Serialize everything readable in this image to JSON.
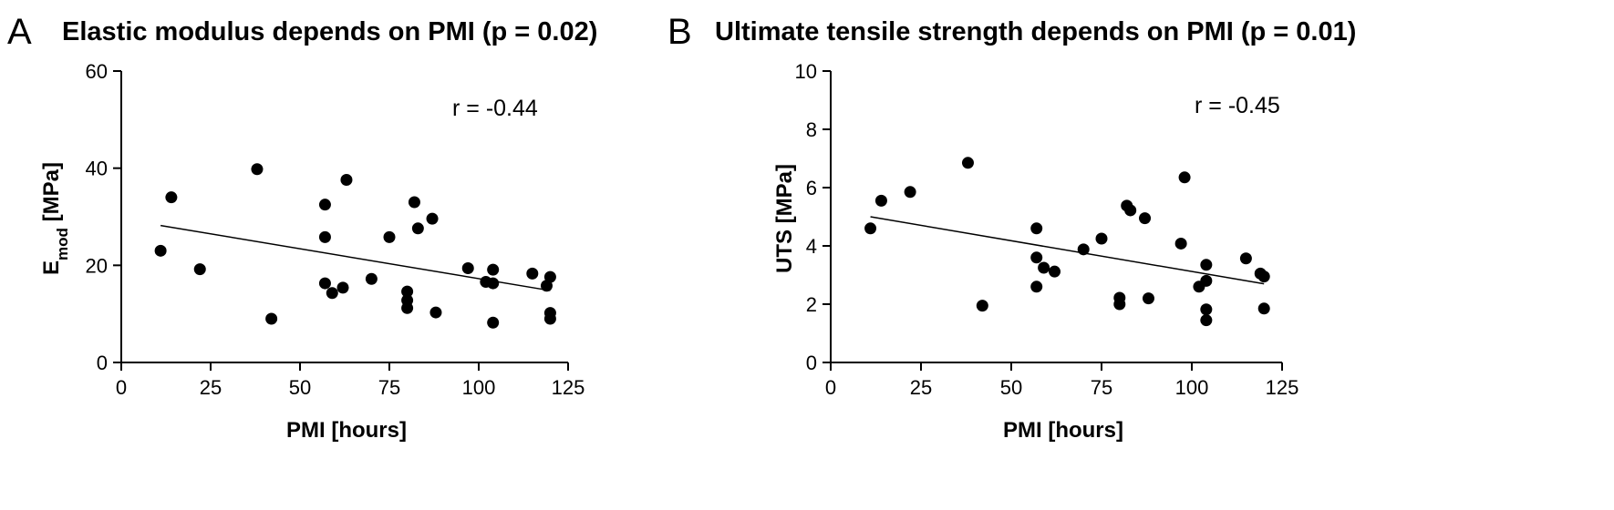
{
  "chart_data": [
    {
      "type": "scatter",
      "panel": "A",
      "title": "Elastic modulus depends on PMI (p = 0.02)",
      "xlabel": "PMI [hours]",
      "ylabel": "E",
      "ylabel_sub": "mod",
      "ylabel_unit": " [MPa]",
      "xlim": [
        0,
        125
      ],
      "ylim": [
        0,
        60
      ],
      "xticks": [
        0,
        25,
        50,
        75,
        100,
        125
      ],
      "yticks": [
        0,
        20,
        40,
        60
      ],
      "annotation": "r  = -0.44",
      "grid": false,
      "points": [
        {
          "x": 11,
          "y": 23
        },
        {
          "x": 14,
          "y": 34
        },
        {
          "x": 22,
          "y": 19.2
        },
        {
          "x": 38,
          "y": 39.8
        },
        {
          "x": 42,
          "y": 9
        },
        {
          "x": 57,
          "y": 32.5
        },
        {
          "x": 57,
          "y": 25.8
        },
        {
          "x": 57,
          "y": 16.3
        },
        {
          "x": 59,
          "y": 14.3
        },
        {
          "x": 62,
          "y": 15.4
        },
        {
          "x": 63,
          "y": 37.6
        },
        {
          "x": 70,
          "y": 17.2
        },
        {
          "x": 75,
          "y": 25.8
        },
        {
          "x": 80,
          "y": 14.6
        },
        {
          "x": 80,
          "y": 12.8
        },
        {
          "x": 80,
          "y": 11.2
        },
        {
          "x": 82,
          "y": 33
        },
        {
          "x": 83,
          "y": 27.6
        },
        {
          "x": 87,
          "y": 29.6
        },
        {
          "x": 88,
          "y": 10.3
        },
        {
          "x": 97,
          "y": 19.4
        },
        {
          "x": 102,
          "y": 16.6
        },
        {
          "x": 104,
          "y": 19.1
        },
        {
          "x": 104,
          "y": 16.3
        },
        {
          "x": 104,
          "y": 8.2
        },
        {
          "x": 115,
          "y": 18.3
        },
        {
          "x": 119,
          "y": 15.8
        },
        {
          "x": 120,
          "y": 17.6
        },
        {
          "x": 120,
          "y": 10.2
        },
        {
          "x": 120,
          "y": 9
        }
      ],
      "fit_line": {
        "x": [
          11,
          120
        ],
        "y": [
          28.2,
          14.8
        ]
      }
    },
    {
      "type": "scatter",
      "panel": "B",
      "title": "Ultimate tensile strength depends on PMI (p = 0.01)",
      "xlabel": "PMI [hours]",
      "ylabel": "UTS [MPa]",
      "xlim": [
        0,
        125
      ],
      "ylim": [
        0,
        10
      ],
      "xticks": [
        0,
        25,
        50,
        75,
        100,
        125
      ],
      "yticks": [
        0,
        2,
        4,
        6,
        8,
        10
      ],
      "annotation": "r = -0.45",
      "grid": false,
      "points": [
        {
          "x": 11,
          "y": 4.6
        },
        {
          "x": 14,
          "y": 5.55
        },
        {
          "x": 22,
          "y": 5.85
        },
        {
          "x": 38,
          "y": 6.85
        },
        {
          "x": 42,
          "y": 1.95
        },
        {
          "x": 57,
          "y": 4.6
        },
        {
          "x": 57,
          "y": 3.6
        },
        {
          "x": 57,
          "y": 2.6
        },
        {
          "x": 59,
          "y": 3.25
        },
        {
          "x": 62,
          "y": 3.12
        },
        {
          "x": 70,
          "y": 3.88
        },
        {
          "x": 75,
          "y": 4.25
        },
        {
          "x": 80,
          "y": 2.22
        },
        {
          "x": 80,
          "y": 2.0
        },
        {
          "x": 82,
          "y": 5.38
        },
        {
          "x": 83,
          "y": 5.22
        },
        {
          "x": 87,
          "y": 4.95
        },
        {
          "x": 88,
          "y": 2.2
        },
        {
          "x": 97,
          "y": 4.08
        },
        {
          "x": 98,
          "y": 6.35
        },
        {
          "x": 102,
          "y": 2.6
        },
        {
          "x": 104,
          "y": 3.35
        },
        {
          "x": 104,
          "y": 2.8
        },
        {
          "x": 104,
          "y": 1.82
        },
        {
          "x": 104,
          "y": 1.45
        },
        {
          "x": 115,
          "y": 3.57
        },
        {
          "x": 119,
          "y": 3.05
        },
        {
          "x": 120,
          "y": 2.95
        },
        {
          "x": 120,
          "y": 1.85
        }
      ],
      "fit_line": {
        "x": [
          11,
          120
        ],
        "y": [
          5.0,
          2.7
        ]
      }
    }
  ]
}
